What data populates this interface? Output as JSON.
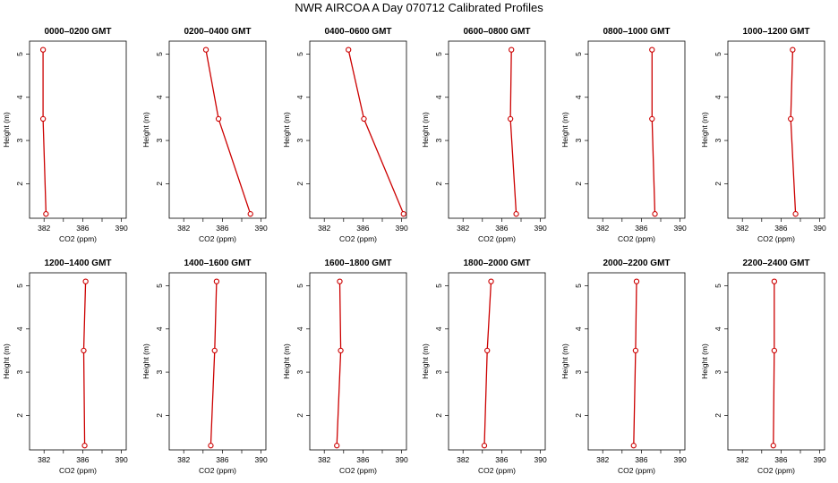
{
  "title": "NWR AIRCOA A  Day 070712  Calibrated Profiles",
  "chart_data": {
    "type": "line",
    "title": "NWR AIRCOA A  Day 070712  Calibrated Profiles",
    "xlabel": "CO2 (ppm)",
    "ylabel": "Height (m)",
    "xlim": [
      380.5,
      390.5
    ],
    "ylim": [
      1.2,
      5.3
    ],
    "x_ticks": [
      "382",
      "386",
      "390"
    ],
    "x_ticks_minor": [
      384,
      388
    ],
    "y_ticks": [
      "2",
      "3",
      "4",
      "5"
    ],
    "line_color": "#cc0000",
    "panels": [
      {
        "title": "0000–0200 GMT",
        "points": [
          {
            "x": 381.9,
            "y": 5.1
          },
          {
            "x": 381.9,
            "y": 3.5
          },
          {
            "x": 382.2,
            "y": 1.3
          }
        ]
      },
      {
        "title": "0200–0400 GMT",
        "points": [
          {
            "x": 384.3,
            "y": 5.1
          },
          {
            "x": 385.6,
            "y": 3.5
          },
          {
            "x": 388.9,
            "y": 1.3
          }
        ]
      },
      {
        "title": "0400–0600 GMT",
        "points": [
          {
            "x": 384.5,
            "y": 5.1
          },
          {
            "x": 386.1,
            "y": 3.5
          },
          {
            "x": 390.2,
            "y": 1.3
          }
        ]
      },
      {
        "title": "0600–0800 GMT",
        "points": [
          {
            "x": 387.0,
            "y": 5.1
          },
          {
            "x": 386.9,
            "y": 3.5
          },
          {
            "x": 387.5,
            "y": 1.3
          }
        ]
      },
      {
        "title": "0800–1000 GMT",
        "points": [
          {
            "x": 387.1,
            "y": 5.1
          },
          {
            "x": 387.1,
            "y": 3.5
          },
          {
            "x": 387.4,
            "y": 1.3
          }
        ]
      },
      {
        "title": "1000–1200 GMT",
        "points": [
          {
            "x": 387.2,
            "y": 5.1
          },
          {
            "x": 387.0,
            "y": 3.5
          },
          {
            "x": 387.5,
            "y": 1.3
          }
        ]
      },
      {
        "title": "1200–1400 GMT",
        "points": [
          {
            "x": 386.3,
            "y": 5.1
          },
          {
            "x": 386.1,
            "y": 3.5
          },
          {
            "x": 386.2,
            "y": 1.3
          }
        ]
      },
      {
        "title": "1400–1600 GMT",
        "points": [
          {
            "x": 385.4,
            "y": 5.1
          },
          {
            "x": 385.2,
            "y": 3.5
          },
          {
            "x": 384.8,
            "y": 1.3
          }
        ]
      },
      {
        "title": "1600–1800 GMT",
        "points": [
          {
            "x": 383.6,
            "y": 5.1
          },
          {
            "x": 383.7,
            "y": 3.5
          },
          {
            "x": 383.3,
            "y": 1.3
          }
        ]
      },
      {
        "title": "1800–2000 GMT",
        "points": [
          {
            "x": 384.9,
            "y": 5.1
          },
          {
            "x": 384.5,
            "y": 3.5
          },
          {
            "x": 384.2,
            "y": 1.3
          }
        ]
      },
      {
        "title": "2000–2200 GMT",
        "points": [
          {
            "x": 385.5,
            "y": 5.1
          },
          {
            "x": 385.4,
            "y": 3.5
          },
          {
            "x": 385.2,
            "y": 1.3
          }
        ]
      },
      {
        "title": "2200–2400 GMT",
        "points": [
          {
            "x": 385.3,
            "y": 5.1
          },
          {
            "x": 385.3,
            "y": 3.5
          },
          {
            "x": 385.2,
            "y": 1.3
          }
        ]
      }
    ]
  }
}
